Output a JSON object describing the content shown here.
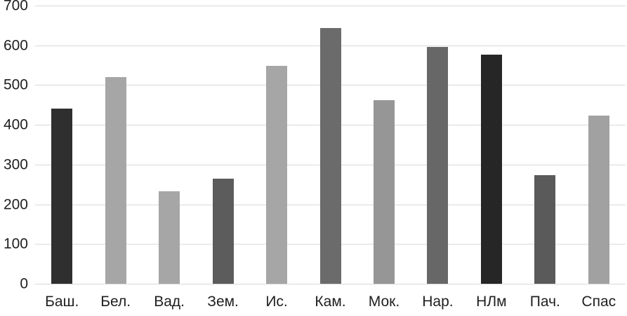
{
  "chart_data": {
    "type": "bar",
    "title": "",
    "xlabel": "",
    "ylabel": "",
    "categories": [
      "Баш.",
      "Бел.",
      "Вад.",
      "Зем.",
      "Ис.",
      "Кам.",
      "Мок.",
      "Нар.",
      "НЛм",
      "Пач.",
      "Спас"
    ],
    "values": [
      440,
      520,
      233,
      264,
      549,
      643,
      462,
      596,
      576,
      274,
      423
    ],
    "bar_colors": [
      "#2f2f2f",
      "#a6a6a6",
      "#a6a6a6",
      "#5c5c5c",
      "#a6a6a6",
      "#6b6b6b",
      "#969696",
      "#676767",
      "#262626",
      "#5a5a5a",
      "#a1a1a1"
    ],
    "ylim": [
      0,
      700
    ],
    "yticks": [
      0,
      100,
      200,
      300,
      400,
      500,
      600,
      700
    ],
    "legend": "none",
    "grid": "horizontal",
    "gridline_color": "#d9d9d9",
    "tick_label_color": "#1f1f1f",
    "background": "#ffffff"
  }
}
